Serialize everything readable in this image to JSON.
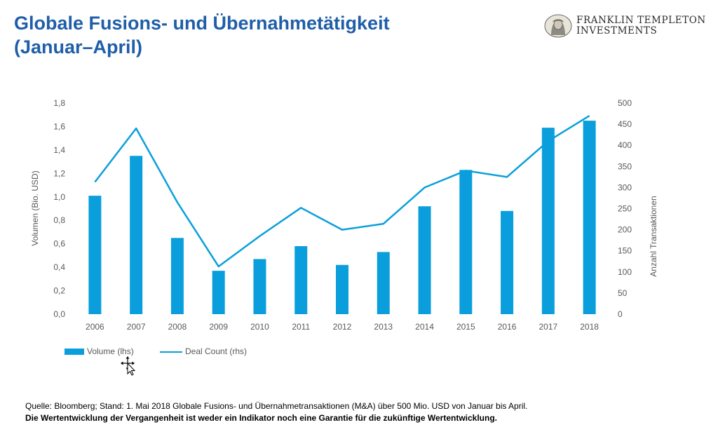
{
  "header": {
    "title_line1": "Globale Fusions- und Übernahmetätigkeit",
    "title_line2": "(Januar–April)"
  },
  "logo": {
    "line1": "FRANKLIN TEMPLETON",
    "line2": "INVESTMENTS"
  },
  "colors": {
    "title": "#1f5ea8",
    "series": "#0a9fdc",
    "axis_text": "#595959"
  },
  "chart_data": {
    "type": "bar",
    "categories": [
      "2006",
      "2007",
      "2008",
      "2009",
      "2010",
      "2011",
      "2012",
      "2013",
      "2014",
      "2015",
      "2016",
      "2017",
      "2018"
    ],
    "series": [
      {
        "name": "Volume (lhs)",
        "type": "bar",
        "axis": "left",
        "values": [
          1.01,
          1.35,
          0.65,
          0.37,
          0.47,
          0.58,
          0.42,
          0.53,
          0.92,
          1.23,
          0.88,
          1.59,
          1.65
        ]
      },
      {
        "name": "Deal Count (rhs)",
        "type": "line",
        "axis": "right",
        "values": [
          313,
          440,
          265,
          113,
          185,
          252,
          200,
          214,
          300,
          340,
          325,
          410,
          470
        ]
      }
    ],
    "ylabel": "Volumen (Bio. USD)",
    "y2label": "Anzahl Transaktionen",
    "ylim": [
      0,
      1.8
    ],
    "y2lim": [
      0,
      500
    ],
    "yticks": [
      "0,0",
      "0,2",
      "0,4",
      "0,6",
      "0,8",
      "1,0",
      "1,2",
      "1,4",
      "1,6",
      "1,8"
    ],
    "y2ticks": [
      "0",
      "50",
      "100",
      "150",
      "200",
      "250",
      "300",
      "350",
      "400",
      "450",
      "500"
    ],
    "grid": false,
    "legend_position": "bottom-left"
  },
  "footnote": {
    "source": "Quelle: Bloomberg; Stand: 1. Mai 2018 Globale Fusions- und Übernahmetransaktionen (M&A) über 500 Mio. USD von Januar bis April.",
    "disclaimer": "Die Wertentwicklung der Vergangenheit ist weder ein Indikator noch eine Garantie für die zukünftige Wertentwicklung."
  }
}
